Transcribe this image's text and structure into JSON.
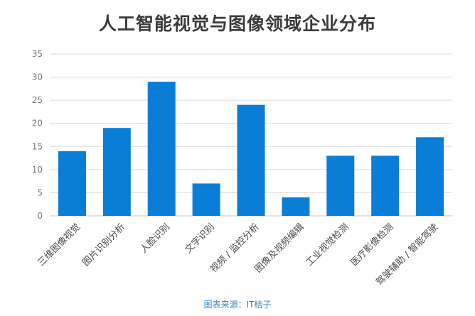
{
  "chart_data": {
    "type": "bar",
    "title": "人工智能视觉与图像领域企业分布",
    "categories": [
      "三维图像视觉",
      "图片识别分析",
      "人脸识别",
      "文字识别",
      "视频 / 监控分析",
      "图像及视频编辑",
      "工业视觉检测",
      "医疗影像检测",
      "驾驶辅助 / 智能驾驶"
    ],
    "values": [
      14,
      19,
      29,
      7,
      24,
      4,
      13,
      13,
      17
    ],
    "ylim": [
      0,
      35
    ],
    "yticks": [
      "0",
      "5",
      "10",
      "15",
      "20",
      "25",
      "30",
      "35"
    ],
    "xlabel": "",
    "ylabel": "",
    "grid": true,
    "legend": "none",
    "bar_color": "#0a7ed6"
  },
  "source": "图表来源：IT桔子"
}
